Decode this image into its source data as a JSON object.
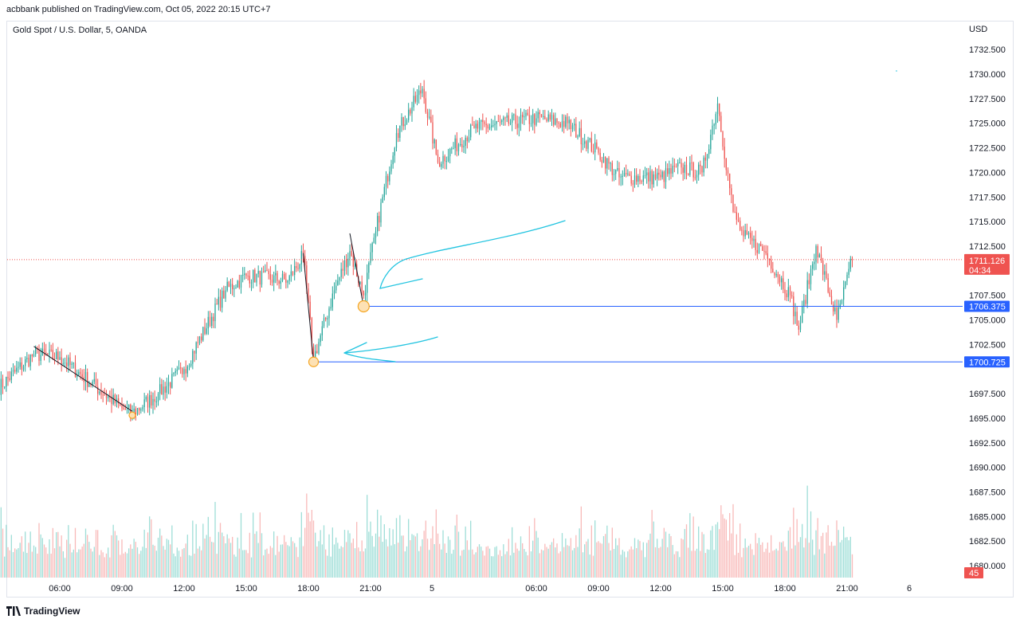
{
  "header": {
    "published": "acbbank published on TradingView.com, Oct 05, 2022 20:15 UTC+7",
    "symbol": "Gold Spot / U.S. Dollar, 5, OANDA",
    "currency": "USD"
  },
  "footer": {
    "brand": "TradingView"
  },
  "colors": {
    "up": "#26a69a",
    "down": "#ef5350",
    "hline": "#2962ff",
    "arrow": "#22c4e0",
    "price_dotted": "#ef5350",
    "marker": "#f5a623"
  },
  "chart_data": {
    "type": "candlestick",
    "y_ticks": [
      "1732.500",
      "1730.000",
      "1727.500",
      "1725.000",
      "1722.500",
      "1720.000",
      "1717.500",
      "1715.000",
      "1712.500",
      "1707.500",
      "1705.000",
      "1702.500",
      "1697.500",
      "1695.000",
      "1692.500",
      "1690.000",
      "1687.500",
      "1685.000",
      "1682.500",
      "1680.000"
    ],
    "x_ticks": [
      "06:00",
      "09:00",
      "12:00",
      "15:00",
      "18:00",
      "21:00",
      "5",
      "06:00",
      "09:00",
      "12:00",
      "15:00",
      "18:00",
      "21:00",
      "6"
    ],
    "ylim": [
      1679.5,
      1734.5
    ],
    "current_price": {
      "value": 1711.126,
      "label": "1711.126",
      "countdown": "04:34"
    },
    "horizontal_lines": [
      {
        "value": 1706.375,
        "label": "1706.375"
      },
      {
        "value": 1700.725,
        "label": "1700.725"
      }
    ],
    "volume_label": "45",
    "anchors": [
      {
        "label": "Oct 4 03:00",
        "close": 1698.0
      },
      {
        "label": "Oct 4 04:45",
        "close": 1701.5
      },
      {
        "label": "Oct 4 06:00",
        "close": 1701.2
      },
      {
        "label": "Oct 4 09:00",
        "close": 1696.0
      },
      {
        "label": "Oct 4 09:30",
        "close": 1695.5
      },
      {
        "label": "Oct 4 10:45",
        "close": 1697.5
      },
      {
        "label": "Oct 4 12:00",
        "close": 1700.0
      },
      {
        "label": "Oct 4 14:00",
        "close": 1708.0
      },
      {
        "label": "Oct 4 15:00",
        "close": 1709.5
      },
      {
        "label": "Oct 4 17:00",
        "close": 1709.0
      },
      {
        "label": "Oct 4 17:45",
        "close": 1711.5
      },
      {
        "label": "Oct 4 18:15",
        "close": 1701.0
      },
      {
        "label": "Oct 4 19:15",
        "close": 1708.0
      },
      {
        "label": "Oct 4 20:00",
        "close": 1712.0
      },
      {
        "label": "Oct 4 20:40",
        "close": 1707.5
      },
      {
        "label": "Oct 4 21:15",
        "close": 1714.0
      },
      {
        "label": "Oct 4 22:15",
        "close": 1724.0
      },
      {
        "label": "Oct 4 23:30",
        "close": 1728.5
      },
      {
        "label": "Oct 5 00:15",
        "close": 1721.0
      },
      {
        "label": "Oct 5 02:00",
        "close": 1724.5
      },
      {
        "label": "Oct 5 05:00",
        "close": 1725.5
      },
      {
        "label": "Oct 5 06:30",
        "close": 1725.0
      },
      {
        "label": "Oct 5 08:00",
        "close": 1722.0
      },
      {
        "label": "Oct 5 09:00",
        "close": 1719.5
      },
      {
        "label": "Oct 5 11:00",
        "close": 1719.5
      },
      {
        "label": "Oct 5 12:00",
        "close": 1720.5
      },
      {
        "label": "Oct 5 13:00",
        "close": 1720.0
      },
      {
        "label": "Oct 5 13:45",
        "close": 1727.0
      },
      {
        "label": "Oct 5 14:30",
        "close": 1716.0
      },
      {
        "label": "Oct 5 15:00",
        "close": 1713.5
      },
      {
        "label": "Oct 5 16:00",
        "close": 1712.0
      },
      {
        "label": "Oct 5 17:15",
        "close": 1707.5
      },
      {
        "label": "Oct 5 17:40",
        "close": 1704.0
      },
      {
        "label": "Oct 5 18:30",
        "close": 1712.5
      },
      {
        "label": "Oct 5 19:30",
        "close": 1705.0
      },
      {
        "label": "Oct 5 20:15",
        "close": 1711.126
      }
    ],
    "grid": false,
    "legend": "none"
  }
}
